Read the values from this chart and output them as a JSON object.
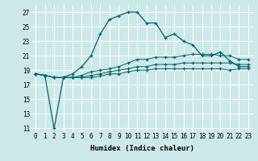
{
  "xlabel": "Humidex (Indice chaleur)",
  "background_color": "#cce8e8",
  "grid_color": "#ffffff",
  "line_color": "#006666",
  "xlim": [
    -0.5,
    23.5
  ],
  "ylim": [
    10.5,
    28
  ],
  "yticks": [
    11,
    13,
    15,
    17,
    19,
    21,
    23,
    25,
    27
  ],
  "xticks": [
    0,
    1,
    2,
    3,
    4,
    5,
    6,
    7,
    8,
    9,
    10,
    11,
    12,
    13,
    14,
    15,
    16,
    17,
    18,
    19,
    20,
    21,
    22,
    23
  ],
  "main_line": [
    18.5,
    18.3,
    11.0,
    18.0,
    18.5,
    19.5,
    21.0,
    24.0,
    26.0,
    26.5,
    27.0,
    27.0,
    25.5,
    25.5,
    23.5,
    24.0,
    23.0,
    22.5,
    21.0,
    21.0,
    21.5,
    20.3,
    19.5,
    19.5
  ],
  "line2": [
    18.5,
    18.3,
    18.0,
    18.0,
    18.0,
    18.3,
    18.8,
    19.0,
    19.2,
    19.5,
    20.0,
    20.5,
    20.5,
    20.8,
    20.8,
    20.8,
    21.0,
    21.2,
    21.2,
    21.2,
    21.0,
    21.0,
    20.5,
    20.5
  ],
  "line3": [
    18.5,
    18.3,
    18.0,
    18.0,
    18.0,
    18.0,
    18.3,
    18.5,
    18.8,
    19.0,
    19.2,
    19.5,
    19.5,
    19.8,
    19.8,
    19.8,
    20.0,
    20.0,
    20.0,
    20.0,
    20.0,
    20.0,
    19.8,
    19.8
  ],
  "line4": [
    18.5,
    18.3,
    18.0,
    18.0,
    18.0,
    18.0,
    18.0,
    18.2,
    18.5,
    18.5,
    18.8,
    19.0,
    19.0,
    19.2,
    19.2,
    19.2,
    19.2,
    19.2,
    19.2,
    19.2,
    19.2,
    19.0,
    19.2,
    19.2
  ]
}
